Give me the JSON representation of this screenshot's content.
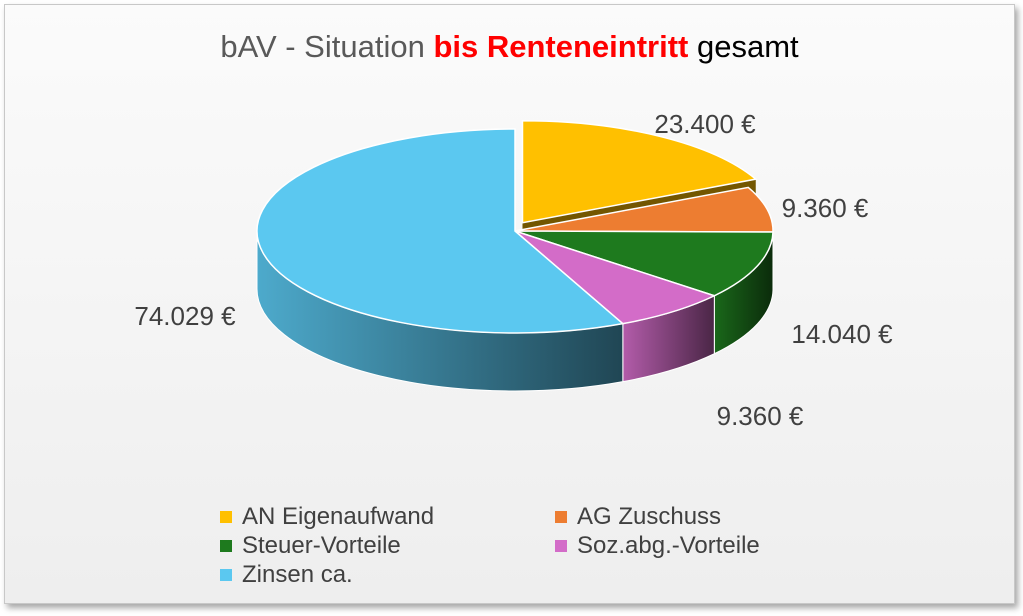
{
  "chart_data": {
    "type": "pie",
    "title": {
      "prefix": "bAV - Situation ",
      "highlight": "bis Renteneintritt",
      "suffix": " gesamt"
    },
    "slices": [
      {
        "name": "AN Eigenaufwand",
        "value": 23400,
        "label": "23.400 €",
        "color": "#ffc000",
        "exploded": true
      },
      {
        "name": "AG Zuschuss",
        "value": 9360,
        "label": "9.360 €",
        "color": "#ed7d31"
      },
      {
        "name": "Steuer-Vorteile",
        "value": 14040,
        "label": "14.040 €",
        "color": "#1e7a1e"
      },
      {
        "name": "Soz.abg.-Vorteile",
        "value": 9360,
        "label": "9.360 €",
        "color": "#d36cc8"
      },
      {
        "name": "Zinsen ca.",
        "value": 74029,
        "label": "74.029 €",
        "color": "#5bc8f0"
      }
    ],
    "style": "3d-pie",
    "legend_position": "bottom"
  }
}
